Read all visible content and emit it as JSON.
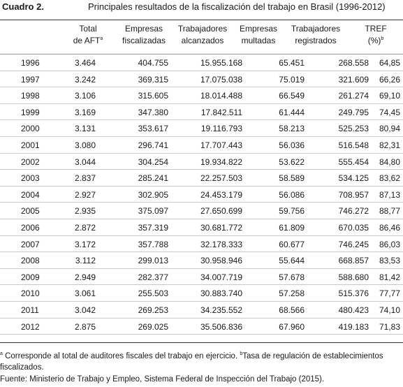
{
  "title": {
    "label": "Cuadro 2.",
    "text": "Principales resultados de la fiscalización del trabajo en Brasil (1996-2012)"
  },
  "table": {
    "headers": [
      {
        "line1": "Total",
        "line2": "de AFT",
        "sup": "a"
      },
      {
        "line1": "Empresas",
        "line2": "fiscalizadas",
        "sup": ""
      },
      {
        "line1": "Trabajadores",
        "line2": "alcanzados",
        "sup": ""
      },
      {
        "line1": "Empresas",
        "line2": "multadas",
        "sup": ""
      },
      {
        "line1": "Trabajadores",
        "line2": "registrados",
        "sup": ""
      },
      {
        "line1": "TREF",
        "line2": "(%)",
        "sup": "b"
      }
    ],
    "rows": [
      [
        "1996",
        "3.464",
        "404.755",
        "15.955.168",
        "65.451",
        "268.558",
        "64,85"
      ],
      [
        "1997",
        "3.242",
        "369.315",
        "17.075.038",
        "75.019",
        "321.609",
        "66,26"
      ],
      [
        "1998",
        "3.106",
        "315.605",
        "18.014.488",
        "66.549",
        "261.274",
        "69,10"
      ],
      [
        "1999",
        "3.169",
        "347.380",
        "17.842.511",
        "61.444",
        "249.795",
        "74,45"
      ],
      [
        "2000",
        "3.131",
        "353.617",
        "19.116.793",
        "58.213",
        "525.253",
        "80,94"
      ],
      [
        "2001",
        "3.080",
        "296.741",
        "17.707.443",
        "56.036",
        "516.548",
        "82,31"
      ],
      [
        "2002",
        "3.044",
        "304.254",
        "19.934.822",
        "53.622",
        "555.454",
        "84,80"
      ],
      [
        "2003",
        "2.837",
        "285.241",
        "22.257.503",
        "58.589",
        "534.125",
        "83,62"
      ],
      [
        "2004",
        "2.927",
        "302.905",
        "24.453.179",
        "56.086",
        "708.957",
        "87,13"
      ],
      [
        "2005",
        "2.935",
        "375.097",
        "27.650.699",
        "59.756",
        "746.272",
        "88,77"
      ],
      [
        "2006",
        "2.872",
        "357.319",
        "30.681.772",
        "61.809",
        "670.035",
        "86,46"
      ],
      [
        "2007",
        "3.172",
        "357.788",
        "32.178.333",
        "60.677",
        "746.245",
        "86,03"
      ],
      [
        "2008",
        "3.112",
        "299.013",
        "30.958.946",
        "55.644",
        "668.857",
        "83,53"
      ],
      [
        "2009",
        "2.949",
        "282.377",
        "34.007.719",
        "57.678",
        "588.680",
        "81,42"
      ],
      [
        "2010",
        "3.061",
        "255.503",
        "30.883.740",
        "57.258",
        "515.376",
        "77,77"
      ],
      [
        "2011",
        "3.042",
        "269.253",
        "34.235.552",
        "68.566",
        "480.423",
        "74,10"
      ],
      [
        "2012",
        "2.875",
        "269.025",
        "35.506.836",
        "67.960",
        "419.183",
        "71,83"
      ]
    ]
  },
  "footnotes": {
    "a_mark": "a",
    "a_text": " Corresponde al total de auditores fiscales del trabajo en ejercicio. ",
    "b_mark": "b",
    "b_text": "Tasa de regulación de establecimientos fiscalizados.",
    "source": "Fuente: Ministerio de Trabajo y Empleo, Sistema Federal de Inspección del Trabajo (2015)."
  }
}
